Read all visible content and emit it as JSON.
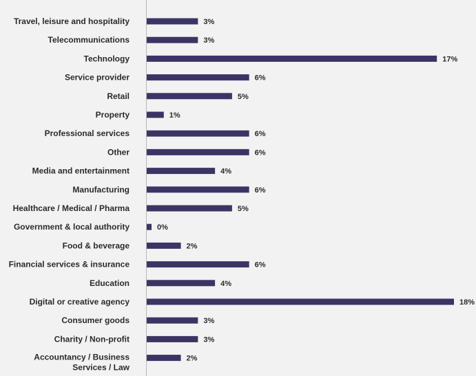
{
  "chart_data": {
    "type": "bar",
    "orientation": "horizontal",
    "categories": [
      "Travel, leisure and hospitality",
      "Telecommunications",
      "Technology",
      "Service provider",
      "Retail",
      "Property",
      "Professional services",
      "Other",
      "Media and entertainment",
      "Manufacturing",
      "Healthcare / Medical / Pharma",
      "Government & local authority",
      "Food & beverage",
      "Financial services & insurance",
      "Education",
      "Digital or creative agency",
      "Consumer goods",
      "Charity / Non-profit",
      "Accountancy / Business Services / Law"
    ],
    "values": [
      3,
      3,
      17,
      6,
      5,
      1,
      6,
      6,
      4,
      6,
      5,
      0,
      2,
      6,
      4,
      18,
      3,
      3,
      2
    ],
    "value_labels": [
      "3%",
      "3%",
      "17%",
      "6%",
      "5%",
      "1%",
      "6%",
      "6%",
      "4%",
      "6%",
      "5%",
      "0%",
      "2%",
      "6%",
      "4%",
      "18%",
      "3%",
      "3%",
      "2%"
    ],
    "category_lines": [
      [
        "Travel, leisure and hospitality"
      ],
      [
        "Telecommunications"
      ],
      [
        "Technology"
      ],
      [
        "Service provider"
      ],
      [
        "Retail"
      ],
      [
        "Property"
      ],
      [
        "Professional services"
      ],
      [
        "Other"
      ],
      [
        "Media and entertainment"
      ],
      [
        "Manufacturing"
      ],
      [
        "Healthcare / Medical / Pharma"
      ],
      [
        "Government & local authority"
      ],
      [
        "Food & beverage"
      ],
      [
        "Financial services & insurance"
      ],
      [
        "Education"
      ],
      [
        "Digital or creative agency"
      ],
      [
        "Consumer goods"
      ],
      [
        "Charity / Non-profit"
      ],
      [
        "Accountancy / Business",
        "Services / Law"
      ]
    ],
    "title": "",
    "xlabel": "",
    "ylabel": "",
    "xlim": [
      0,
      18
    ],
    "grid": false,
    "legend": "none",
    "colors": {
      "bar": "#3b3565",
      "axis": "#b8b8b8",
      "text": "#2b2b2b",
      "background": "#f2f2f2"
    }
  }
}
